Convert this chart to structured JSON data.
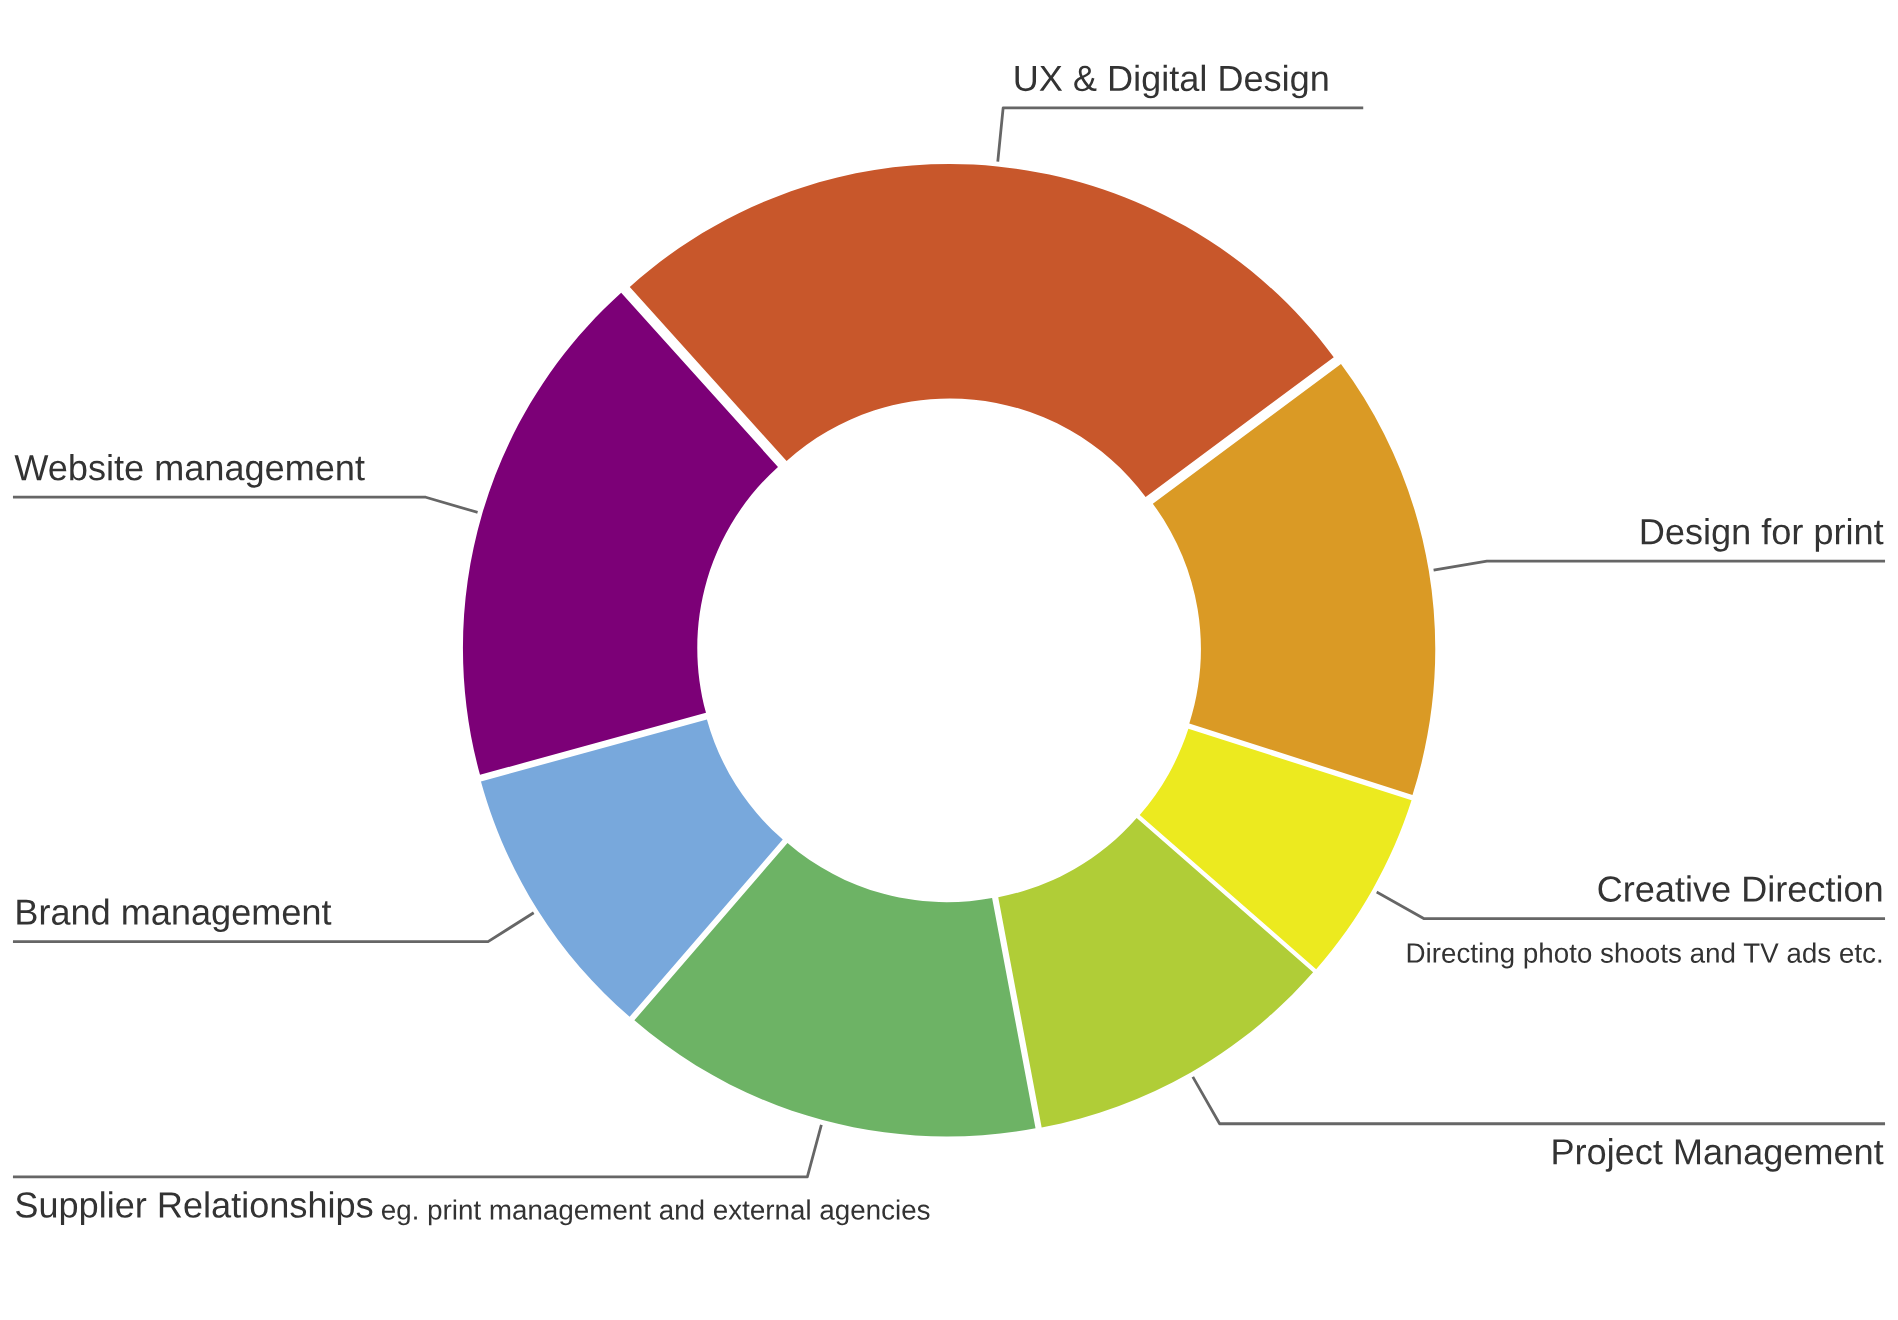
{
  "chart_data": {
    "type": "donut",
    "categories": [
      "UX & Digital Design",
      "Design for print",
      "Creative Direction",
      "Project Management",
      "Supplier Relationships",
      "Brand management",
      "Website management"
    ],
    "values": [
      26.5,
      15.1,
      6.5,
      10.6,
      14.3,
      9.4,
      17.6
    ],
    "colors": [
      "#c8572b",
      "#da9a25",
      "#ecea1f",
      "#b0cd37",
      "#6db365",
      "#78a8dc",
      "#7c0077"
    ],
    "annotations": [
      "Directing photo shoots and TV ads etc.",
      "eg. print management and external agencies"
    ]
  }
}
